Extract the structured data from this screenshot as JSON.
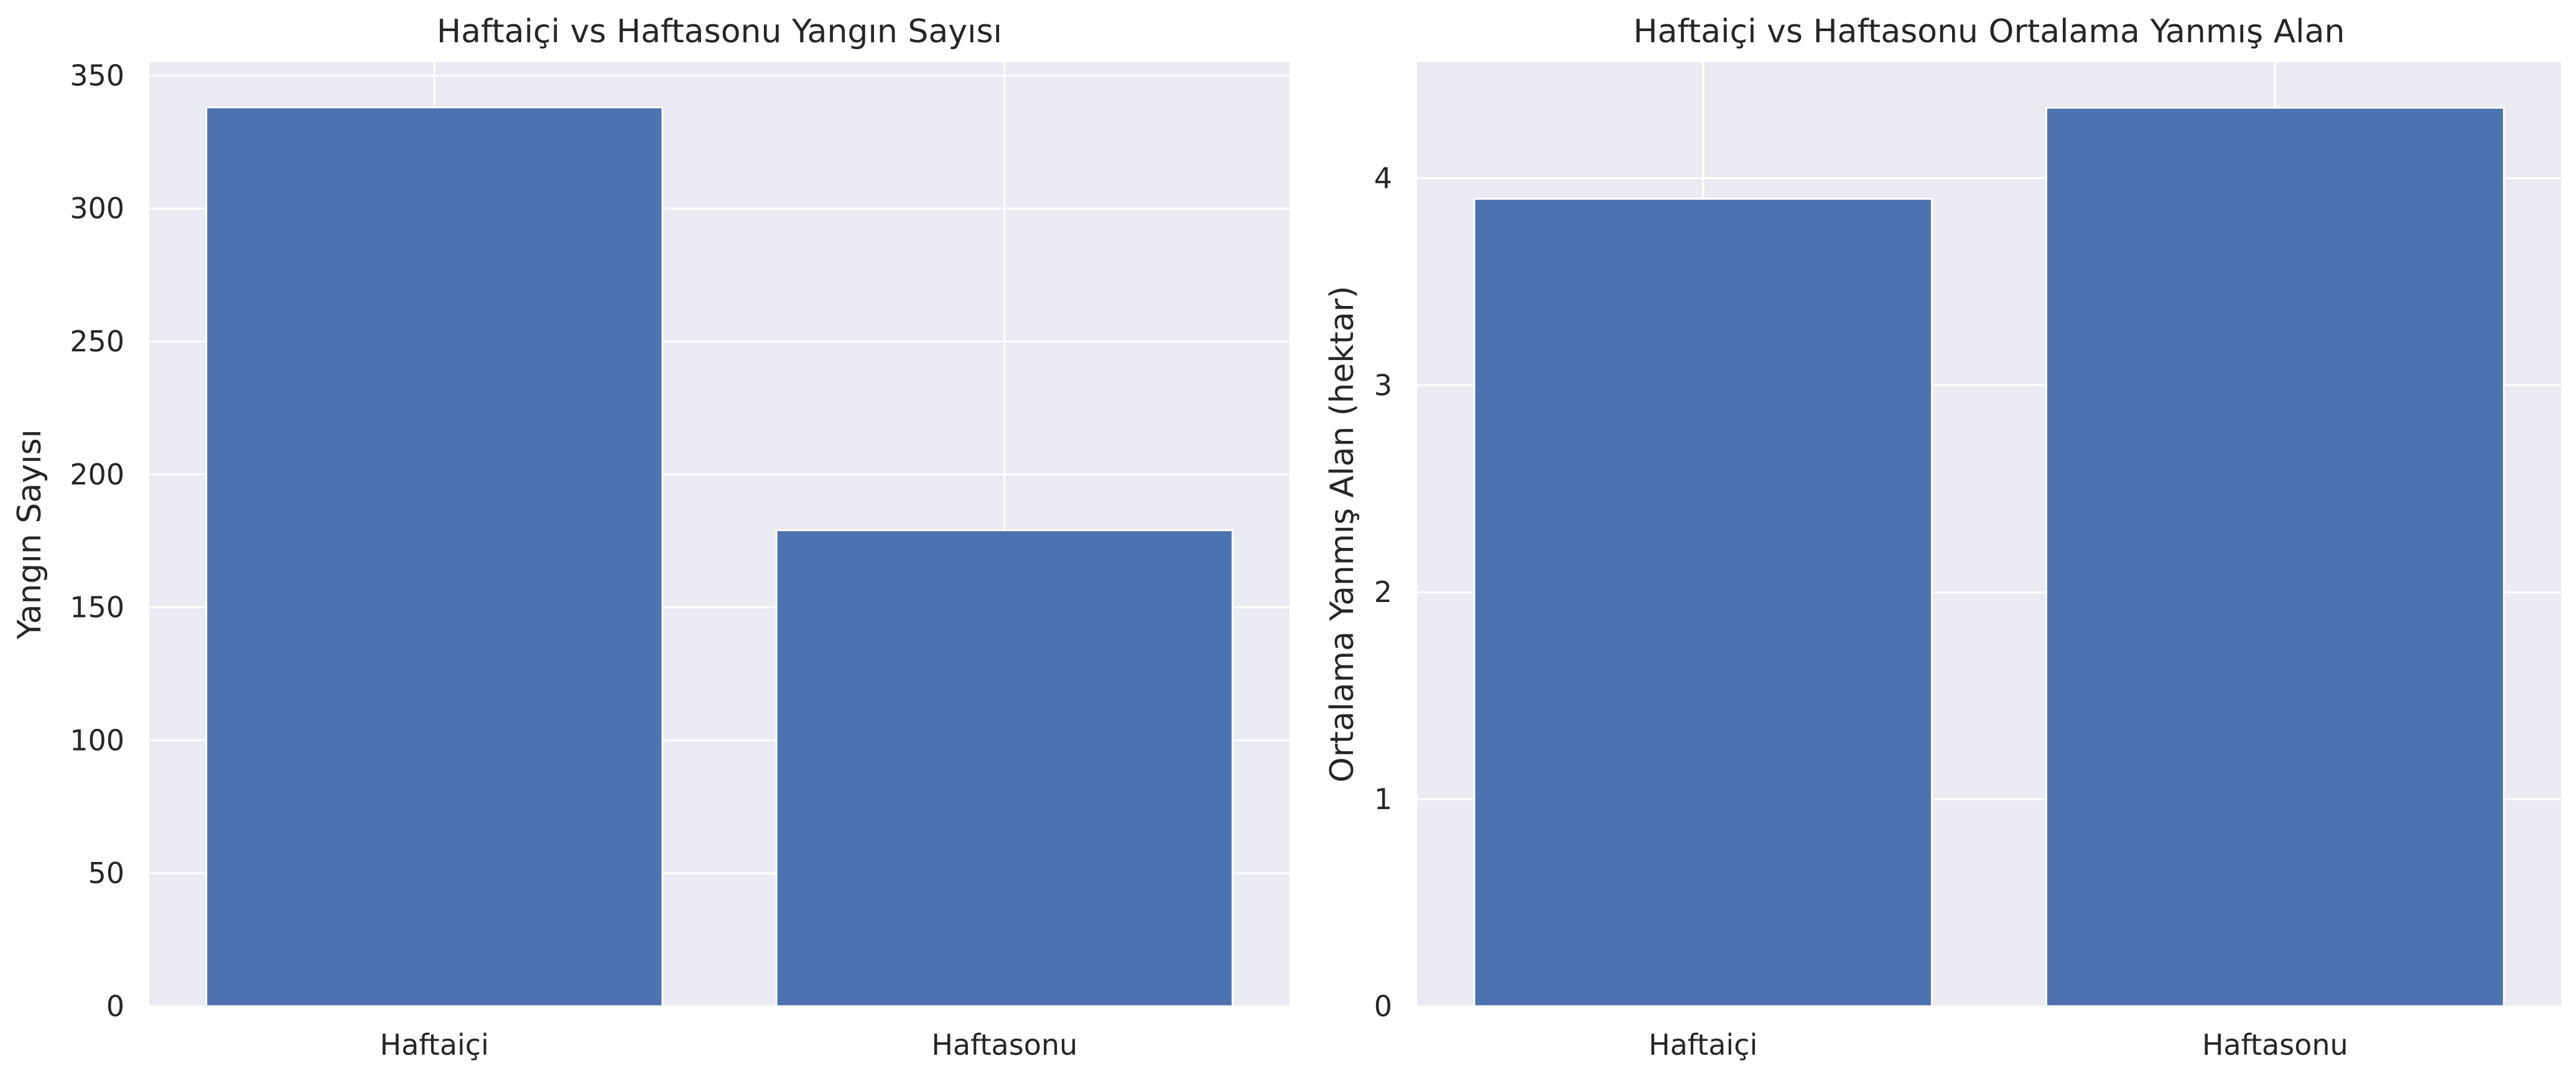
{
  "chart_data": [
    {
      "type": "bar",
      "title": "Haftaiçi vs Haftasonu Yangın Sayısı",
      "xlabel": "",
      "ylabel": "Yangın Sayısı",
      "categories": [
        "Haftaiçi",
        "Haftasonu"
      ],
      "values": [
        338,
        179
      ],
      "ylim": [
        0,
        355
      ],
      "yticks": [
        0,
        50,
        100,
        150,
        200,
        250,
        300,
        350
      ],
      "ytick_labels": [
        "0",
        "50",
        "100",
        "150",
        "200",
        "250",
        "300",
        "350"
      ],
      "grid": true,
      "bar_color": "#4c72b0",
      "background_color": "#eaeaf2"
    },
    {
      "type": "bar",
      "title": "Haftaiçi vs Haftasonu Ortalama Yanmış Alan",
      "xlabel": "",
      "ylabel": "Ortalama Yanmış Alan (hektar)",
      "categories": [
        "Haftaiçi",
        "Haftasonu"
      ],
      "values": [
        3.9,
        4.34
      ],
      "ylim": [
        0,
        4.56
      ],
      "yticks": [
        0,
        1,
        2,
        3,
        4
      ],
      "ytick_labels": [
        "0",
        "1",
        "2",
        "3",
        "4"
      ],
      "grid": true,
      "bar_color": "#4c72b0",
      "background_color": "#eaeaf2"
    }
  ]
}
